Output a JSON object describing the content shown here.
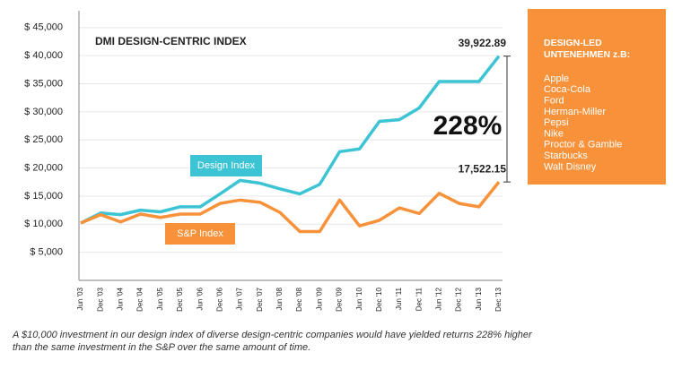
{
  "chart_data": {
    "type": "line",
    "title": "DMI DESIGN-CENTRIC INDEX",
    "categories": [
      "Jun '03",
      "Dec '03",
      "Jun '04",
      "Dec '04",
      "Jun '05",
      "Dec '05",
      "Jun '06",
      "Dec '06",
      "Jun '07",
      "Dec '07",
      "Jun '08",
      "Dec '08",
      "Jun '09",
      "Dec '09",
      "Jun '10",
      "Dec '10",
      "Jun '11",
      "Dec '11",
      "Jun '12",
      "Dec '12",
      "Jun '13",
      "Dec '13"
    ],
    "series": [
      {
        "name": "Design Index",
        "color": "#3cc4d4",
        "values": [
          10200,
          12000,
          11700,
          12500,
          12200,
          13100,
          13100,
          15400,
          17800,
          17300,
          16300,
          15400,
          17100,
          22900,
          23400,
          28300,
          28600,
          30700,
          35400,
          35400,
          35400,
          39922.89
        ],
        "value_labels": [
          null,
          null,
          null,
          null,
          null,
          null,
          null,
          null,
          null,
          null,
          null,
          null,
          null,
          null,
          null,
          null,
          null,
          null,
          null,
          null,
          null,
          "39,922.89"
        ]
      },
      {
        "name": "S&P Index",
        "color": "#f7923a",
        "values": [
          10200,
          11700,
          10400,
          11800,
          11200,
          11800,
          11800,
          13700,
          14300,
          13900,
          12100,
          8700,
          8700,
          14300,
          9700,
          10700,
          12900,
          11900,
          15500,
          13700,
          13100,
          17522.15
        ],
        "value_labels": [
          null,
          null,
          null,
          null,
          null,
          null,
          null,
          null,
          null,
          null,
          null,
          null,
          null,
          null,
          null,
          null,
          null,
          null,
          null,
          null,
          null,
          "17,522.15"
        ]
      }
    ],
    "ylim": [
      0,
      48000
    ],
    "yticks": [
      {
        "value": 5000,
        "label": "$  5,000"
      },
      {
        "value": 10000,
        "label": "$ 10,000"
      },
      {
        "value": 15000,
        "label": "$ 15,000"
      },
      {
        "value": 20000,
        "label": "$ 20,000"
      },
      {
        "value": 25000,
        "label": "$ 25,000"
      },
      {
        "value": 30000,
        "label": "$ 30,000"
      },
      {
        "value": 35000,
        "label": "$ 35,000"
      },
      {
        "value": 40000,
        "label": "$ 40,000"
      },
      {
        "value": 45000,
        "label": "$ 45,000"
      }
    ],
    "grid": true,
    "annotation": "228%"
  },
  "sidebar": {
    "title": [
      "DESIGN-LED",
      "UNTENEHMEN z.B:"
    ],
    "items": [
      "Apple",
      "Coca-Cola",
      "Ford",
      "Herman-Miller",
      "Pepsi",
      "Nike",
      "Proctor & Gamble",
      "Starbucks",
      "Walt Disney"
    ],
    "color": "#f7923a"
  },
  "footnote": [
    "A $10,000 investment in our design index of diverse design-centric companies would have yielded returns 228% higher",
    "than the same investment in the S&P over the same amount of time."
  ]
}
